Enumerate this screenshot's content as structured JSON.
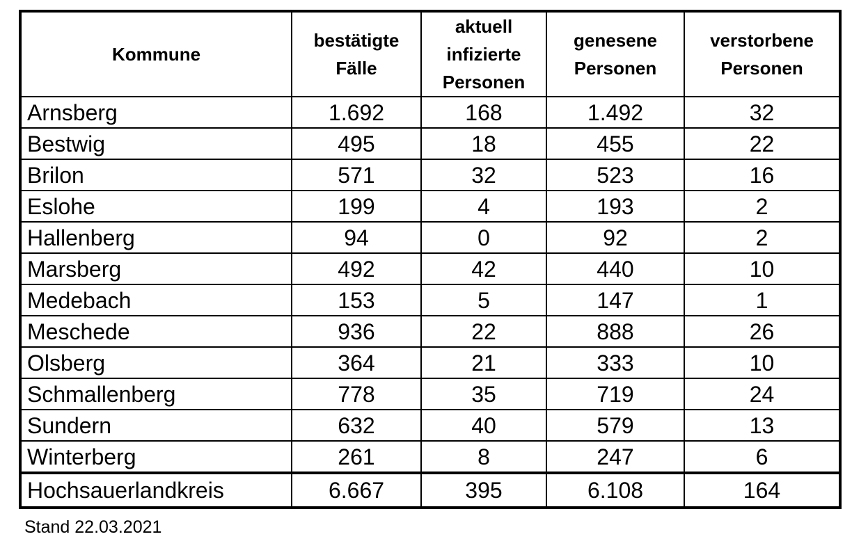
{
  "table": {
    "headers": [
      "Kommune",
      "bestätigte Fälle",
      "aktuell infizierte Personen",
      "genesene Personen",
      "verstorbene Personen"
    ],
    "rows": [
      [
        "Arnsberg",
        "1.692",
        "168",
        "1.492",
        "32"
      ],
      [
        "Bestwig",
        "495",
        "18",
        "455",
        "22"
      ],
      [
        "Brilon",
        "571",
        "32",
        "523",
        "16"
      ],
      [
        "Eslohe",
        "199",
        "4",
        "193",
        "2"
      ],
      [
        "Hallenberg",
        "94",
        "0",
        "92",
        "2"
      ],
      [
        "Marsberg",
        "492",
        "42",
        "440",
        "10"
      ],
      [
        "Medebach",
        "153",
        "5",
        "147",
        "1"
      ],
      [
        "Meschede",
        "936",
        "22",
        "888",
        "26"
      ],
      [
        "Olsberg",
        "364",
        "21",
        "333",
        "10"
      ],
      [
        "Schmallenberg",
        "778",
        "35",
        "719",
        "24"
      ],
      [
        "Sundern",
        "632",
        "40",
        "579",
        "13"
      ],
      [
        "Winterberg",
        "261",
        "8",
        "247",
        "6"
      ]
    ],
    "total": [
      "Hochsauerlandkreis",
      "6.667",
      "395",
      "6.108",
      "164"
    ]
  },
  "footnote": "Stand 22.03.2021"
}
